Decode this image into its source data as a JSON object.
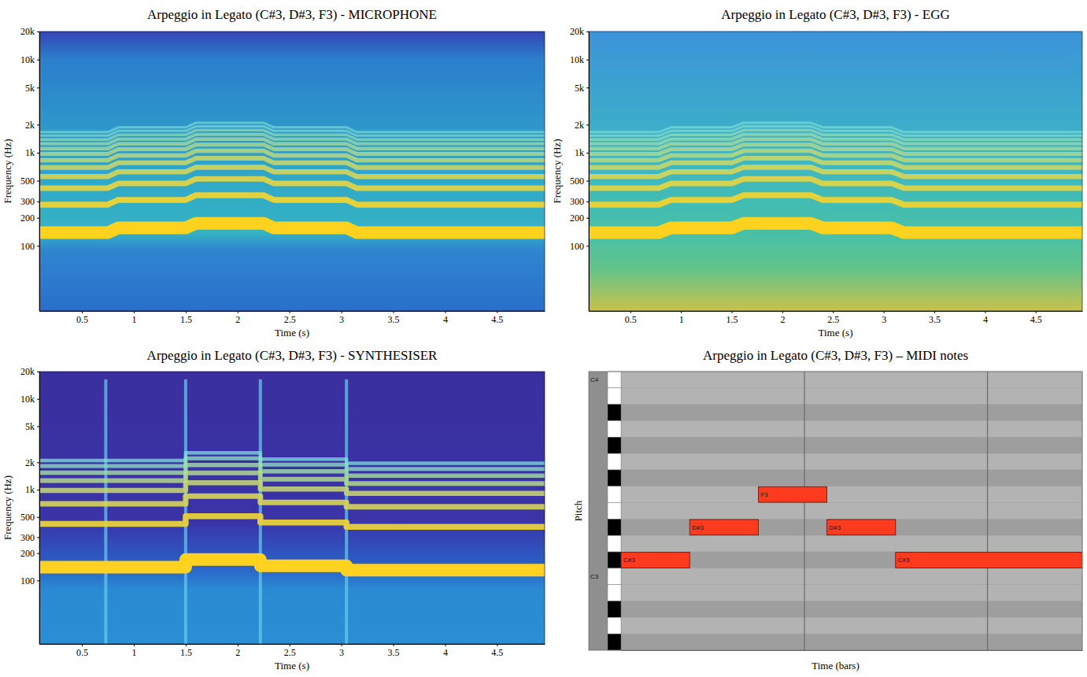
{
  "chart_data": [
    {
      "type": "spectrogram",
      "title": "Arpeggio in Legato (C#3, D#3, F3) - MICROPHONE",
      "x_label": "Time (s)",
      "y_label": "Frequency (Hz)",
      "log": "y",
      "color": "#ffd21f",
      "xlim": [
        0.09,
        4.96
      ],
      "xticks": [
        0.5,
        1,
        1.5,
        2,
        2.5,
        3,
        3.5,
        4,
        4.5
      ],
      "ylim": [
        20,
        20000
      ],
      "yticks": [
        100,
        200,
        300,
        500,
        {
          "value": 1000,
          "label": "1k"
        },
        {
          "value": 2000,
          "label": "2k"
        },
        {
          "value": 5000,
          "label": "5k"
        },
        {
          "value": 10000,
          "label": "10k"
        },
        {
          "value": 20000,
          "label": "20k"
        }
      ],
      "x": [
        0.09,
        0.75,
        0.85,
        1.5,
        1.6,
        2.25,
        2.35,
        3.05,
        3.15,
        4.96
      ],
      "series": [
        {
          "values": [
            138.6,
            138.6,
            155.6,
            155.6,
            174.6,
            174.6,
            155.6,
            155.6,
            138.6,
            138.6
          ]
        },
        {
          "values": [
            277.2,
            277.2,
            311.2,
            311.2,
            349.2,
            349.2,
            311.2,
            311.2,
            277.2,
            277.2
          ]
        },
        {
          "values": [
            415.8,
            415.8,
            466.8,
            466.8,
            523.8,
            523.8,
            466.8,
            466.8,
            415.8,
            415.8
          ]
        },
        {
          "values": [
            554.4,
            554.4,
            622.4,
            622.4,
            698.4,
            698.4,
            622.4,
            622.4,
            554.4,
            554.4
          ]
        },
        {
          "values": [
            693,
            693,
            778,
            778,
            873,
            873,
            778,
            778,
            693,
            693
          ]
        },
        {
          "values": [
            831.6,
            831.6,
            933.6,
            933.6,
            1047.6,
            1047.6,
            933.6,
            933.6,
            831.6,
            831.6
          ]
        },
        {
          "values": [
            970.2,
            970.2,
            1089.2,
            1089.2,
            1222.2,
            1222.2,
            1089.2,
            1089.2,
            970.2,
            970.2
          ]
        },
        {
          "values": [
            1108.8,
            1108.8,
            1244.8,
            1244.8,
            1396.8,
            1396.8,
            1244.8,
            1244.8,
            1108.8,
            1108.8
          ]
        },
        {
          "values": [
            1247.4,
            1247.4,
            1400.4,
            1400.4,
            1571.4,
            1571.4,
            1400.4,
            1400.4,
            1247.4,
            1247.4
          ]
        },
        {
          "values": [
            1386,
            1386,
            1556,
            1556,
            1746,
            1746,
            1556,
            1556,
            1386,
            1386
          ]
        },
        {
          "values": [
            1524.6,
            1524.6,
            1711.6,
            1711.6,
            1920.6,
            1920.6,
            1711.6,
            1711.6,
            1524.6,
            1524.6
          ]
        },
        {
          "values": [
            1663.2,
            1663.2,
            1867.2,
            1867.2,
            2095.2,
            2095.2,
            1867.2,
            1867.2,
            1663.2,
            1663.2
          ]
        }
      ]
    },
    {
      "type": "spectrogram",
      "title": "Arpeggio in Legato (C#3, D#3, F3) - EGG",
      "x_label": "Time (s)",
      "y_label": "Frequency (Hz)",
      "log": "y",
      "color": "#ffd21f",
      "xlim": [
        0.09,
        4.96
      ],
      "xticks": [
        0.5,
        1,
        1.5,
        2,
        2.5,
        3,
        3.5,
        4,
        4.5
      ],
      "ylim": [
        20,
        20000
      ],
      "yticks": [
        100,
        200,
        300,
        500,
        {
          "value": 1000,
          "label": "1k"
        },
        {
          "value": 2000,
          "label": "2k"
        },
        {
          "value": 5000,
          "label": "5k"
        },
        {
          "value": 10000,
          "label": "10k"
        },
        {
          "value": 20000,
          "label": "20k"
        }
      ],
      "x": [
        0.09,
        0.78,
        0.9,
        1.5,
        1.62,
        2.28,
        2.4,
        3.08,
        3.2,
        4.96
      ],
      "series": [
        {
          "values": [
            138.6,
            138.6,
            155.6,
            155.6,
            174.6,
            174.6,
            155.6,
            155.6,
            138.6,
            138.6
          ]
        },
        {
          "values": [
            277.2,
            277.2,
            311.2,
            311.2,
            349.2,
            349.2,
            311.2,
            311.2,
            277.2,
            277.2
          ]
        },
        {
          "values": [
            415.8,
            415.8,
            466.8,
            466.8,
            523.8,
            523.8,
            466.8,
            466.8,
            415.8,
            415.8
          ]
        },
        {
          "values": [
            554.4,
            554.4,
            622.4,
            622.4,
            698.4,
            698.4,
            622.4,
            622.4,
            554.4,
            554.4
          ]
        },
        {
          "values": [
            693,
            693,
            778,
            778,
            873,
            873,
            778,
            778,
            693,
            693
          ]
        },
        {
          "values": [
            831.6,
            831.6,
            933.6,
            933.6,
            1047.6,
            1047.6,
            933.6,
            933.6,
            831.6,
            831.6
          ]
        },
        {
          "values": [
            970.2,
            970.2,
            1089.2,
            1089.2,
            1222.2,
            1222.2,
            1089.2,
            1089.2,
            970.2,
            970.2
          ]
        },
        {
          "values": [
            1108.8,
            1108.8,
            1244.8,
            1244.8,
            1396.8,
            1396.8,
            1244.8,
            1244.8,
            1108.8,
            1108.8
          ]
        },
        {
          "values": [
            1247.4,
            1247.4,
            1400.4,
            1400.4,
            1571.4,
            1571.4,
            1400.4,
            1400.4,
            1247.4,
            1247.4
          ]
        },
        {
          "values": [
            1386,
            1386,
            1556,
            1556,
            1746,
            1746,
            1556,
            1556,
            1386,
            1386
          ]
        },
        {
          "values": [
            1524.6,
            1524.6,
            1711.6,
            1711.6,
            1920.6,
            1920.6,
            1711.6,
            1711.6,
            1524.6,
            1524.6
          ]
        },
        {
          "values": [
            1663.2,
            1663.2,
            1867.2,
            1867.2,
            2095.2,
            2095.2,
            1867.2,
            1867.2,
            1663.2,
            1663.2
          ]
        }
      ]
    },
    {
      "type": "spectrogram",
      "title": "Arpeggio in Legato (C#3, D#3, F3) - SYNTHESISER",
      "x_label": "Time (s)",
      "y_label": "Frequency (Hz)",
      "log": "y",
      "color": "#ffd21f",
      "xlim": [
        0.09,
        4.96
      ],
      "xticks": [
        0.5,
        1,
        1.5,
        2,
        2.5,
        3,
        3.5,
        4,
        4.5
      ],
      "ylim": [
        20,
        20000
      ],
      "yticks": [
        100,
        200,
        300,
        500,
        {
          "value": 1000,
          "label": "1k"
        },
        {
          "value": 2000,
          "label": "2k"
        },
        {
          "value": 5000,
          "label": "5k"
        },
        {
          "value": 10000,
          "label": "10k"
        },
        {
          "value": 20000,
          "label": "20k"
        }
      ],
      "x": [
        0.09,
        0.73,
        0.73,
        1.5,
        1.5,
        2.22,
        2.22,
        3.05,
        3.05,
        4.96
      ],
      "transients": [
        0.73,
        1.5,
        2.22,
        3.05
      ],
      "series": [
        {
          "values": [
            140,
            140,
            140,
            140,
            170,
            170,
            145,
            145,
            130,
            130
          ]
        },
        {
          "values": [
            420,
            420,
            420,
            420,
            510,
            510,
            435,
            435,
            390,
            390
          ]
        },
        {
          "values": [
            700,
            700,
            700,
            700,
            850,
            850,
            725,
            725,
            650,
            650
          ]
        },
        {
          "values": [
            980,
            980,
            980,
            980,
            1190,
            1190,
            1015,
            1015,
            910,
            910
          ]
        },
        {
          "values": [
            1260,
            1260,
            1260,
            1260,
            1530,
            1530,
            1305,
            1305,
            1170,
            1170
          ]
        },
        {
          "values": [
            1540,
            1540,
            1540,
            1540,
            1870,
            1870,
            1595,
            1595,
            1430,
            1430
          ]
        },
        {
          "values": [
            1820,
            1820,
            1820,
            1820,
            2210,
            2210,
            1885,
            1885,
            1690,
            1690
          ]
        },
        {
          "values": [
            2100,
            2100,
            2100,
            2100,
            2550,
            2550,
            2175,
            2175,
            1950,
            1950
          ]
        }
      ]
    },
    {
      "type": "piano_roll",
      "title": "Arpeggio in Legato (C#3, D#3, F3) – MIDI notes",
      "x_label": "Time (bars)",
      "y_label": "Pitch",
      "color": "#ff3b1f",
      "tick_labels": "y",
      "xlim": [
        0,
        2.52
      ],
      "xticks": [
        1,
        2
      ],
      "categories": [
        "C4",
        null,
        null,
        null,
        null,
        null,
        null,
        null,
        null,
        null,
        null,
        null,
        "C3",
        null,
        null,
        null,
        null
      ],
      "notes": {
        "labels": [
          "C#3",
          "D#3",
          "F3",
          "D#3",
          "C#3"
        ],
        "pitch": [
          11,
          9,
          7,
          9,
          11
        ],
        "start": [
          0,
          0.375,
          0.75,
          1.125,
          1.5
        ],
        "end": [
          0.375,
          0.75,
          1.125,
          1.5,
          2.52
        ]
      }
    }
  ]
}
